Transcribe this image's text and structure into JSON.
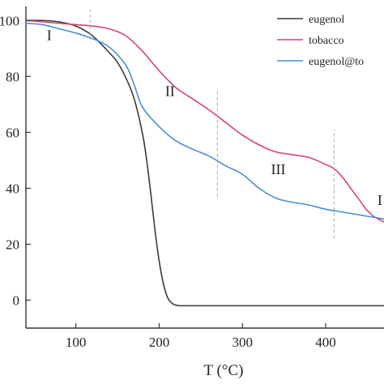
{
  "chart_data": {
    "type": "line",
    "title": "",
    "xlabel": "T (°C)",
    "ylabel": "",
    "xlim": [
      40,
      470
    ],
    "ylim": [
      -10,
      105
    ],
    "grid": false,
    "legend_position": "top-right",
    "x_ticks": [
      {
        "value": 100,
        "label": "100"
      },
      {
        "value": 200,
        "label": "200"
      },
      {
        "value": 300,
        "label": "300"
      },
      {
        "value": 400,
        "label": "400"
      }
    ],
    "y_ticks": [
      {
        "value": 0,
        "label": "0"
      },
      {
        "value": 20,
        "label": "20"
      },
      {
        "value": 40,
        "label": "40"
      },
      {
        "value": 60,
        "label": "60"
      },
      {
        "value": 80,
        "label": "80"
      },
      {
        "value": 100,
        "label": "100"
      }
    ],
    "series": [
      {
        "name": "eugenol",
        "color": "#3a3a3a",
        "x": [
          40,
          60,
          80,
          100,
          120,
          140,
          150,
          160,
          170,
          180,
          185,
          190,
          195,
          200,
          205,
          210,
          215,
          220,
          225,
          230,
          250,
          300,
          350,
          400,
          470
        ],
        "y": [
          100,
          100,
          99.5,
          98,
          94.5,
          88.5,
          85,
          79.5,
          72,
          59.5,
          50,
          38,
          25,
          14,
          6,
          1,
          -1,
          -1.8,
          -2,
          -2,
          -2,
          -2,
          -2,
          -2,
          -2
        ]
      },
      {
        "name": "tobacco",
        "color": "#d6466a",
        "x": [
          40,
          60,
          80,
          100,
          120,
          140,
          160,
          180,
          200,
          220,
          240,
          260,
          280,
          300,
          320,
          340,
          360,
          380,
          400,
          410,
          420,
          430,
          440,
          450,
          460,
          470
        ],
        "y": [
          100,
          99.5,
          99,
          98.5,
          98,
          97,
          94.5,
          89,
          82,
          76,
          72,
          68,
          63.5,
          59,
          55.5,
          53,
          52,
          51,
          48.5,
          47,
          44,
          40,
          36,
          32,
          29.5,
          28
        ]
      },
      {
        "name": "eugenol@to",
        "color": "#4a8fd6",
        "x": [
          40,
          60,
          80,
          100,
          120,
          140,
          160,
          170,
          180,
          200,
          220,
          240,
          260,
          280,
          300,
          320,
          340,
          360,
          380,
          400,
          420,
          440,
          460,
          470
        ],
        "y": [
          99,
          98.5,
          97,
          95.5,
          93.5,
          90.5,
          84,
          77,
          69,
          62,
          57,
          54,
          51.5,
          48,
          45,
          40,
          36.5,
          35,
          34,
          32.5,
          31.5,
          30.5,
          29.5,
          29
        ]
      }
    ],
    "annotations": [
      {
        "text": "I",
        "x": 68,
        "y": 93
      },
      {
        "text": "II",
        "x": 213,
        "y": 73
      },
      {
        "text": "III",
        "x": 343,
        "y": 45
      },
      {
        "text": "I",
        "x": 465,
        "y": 34
      }
    ],
    "dividers": [
      {
        "x": 117,
        "y_from": 93,
        "y_to": 104
      },
      {
        "x": 270,
        "y_from": 37,
        "y_to": 75
      },
      {
        "x": 410,
        "y_from": 22,
        "y_to": 61
      }
    ]
  }
}
